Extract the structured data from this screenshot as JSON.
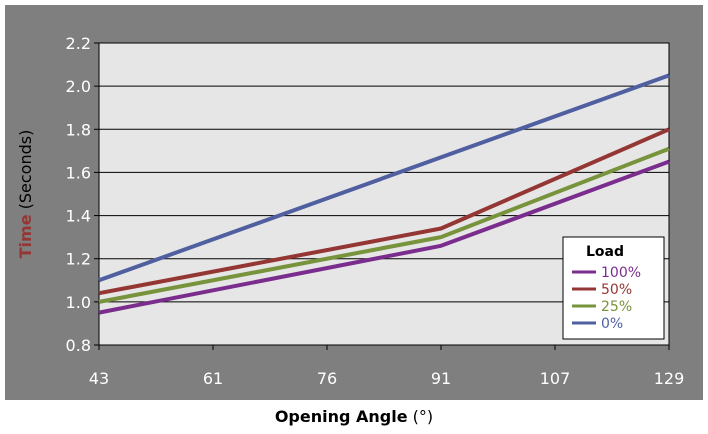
{
  "chart_data": {
    "type": "line",
    "x": [
      43,
      61,
      76,
      91,
      107,
      129
    ],
    "x_tick_labels": [
      "43",
      "61",
      "76",
      "91",
      "107",
      "129"
    ],
    "y_tick_labels": [
      "0.8",
      "1.0",
      "1.2",
      "1.4",
      "1.6",
      "1.8",
      "2.0",
      "2.2"
    ],
    "ylim": [
      0.8,
      2.2
    ],
    "grid": "horizontal",
    "x_title_bold": "Opening Angle",
    "x_title_rest": " (°)",
    "y_title_bold": "Time",
    "y_title_rest": " (Seconds)",
    "legend": {
      "title": "Load",
      "placement": "bottom-right"
    },
    "series": [
      {
        "name": "100%",
        "color": "#7b2d8e",
        "points": [
          [
            43,
            0.95
          ],
          [
            91,
            1.26
          ],
          [
            129,
            1.65
          ]
        ]
      },
      {
        "name": "50%",
        "color": "#943634",
        "points": [
          [
            43,
            1.04
          ],
          [
            91,
            1.34
          ],
          [
            129,
            1.8
          ]
        ]
      },
      {
        "name": "25%",
        "color": "#77933c",
        "points": [
          [
            43,
            1.0
          ],
          [
            91,
            1.3
          ],
          [
            129,
            1.71
          ]
        ]
      },
      {
        "name": "0%",
        "color": "#4f5fa0",
        "points": [
          [
            43,
            1.1
          ],
          [
            129,
            2.05
          ]
        ]
      }
    ],
    "colors": {
      "frame": "#7f7f7f",
      "plot_area": "#e6e6e6",
      "y_title_accent": "#943634"
    }
  }
}
